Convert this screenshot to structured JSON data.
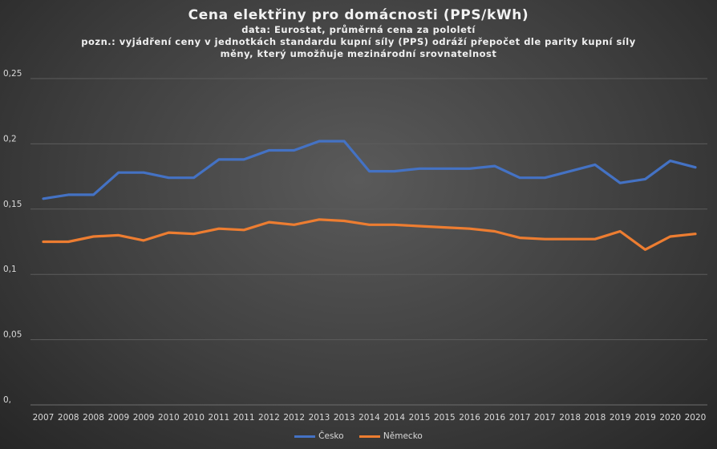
{
  "chart_data": {
    "type": "line",
    "title": "Cena elektřiny pro domácnosti (PPS/kWh)",
    "subtitle_lines": [
      "data: Eurostat, průměrná cena za pololetí",
      "pozn.: vyjádření ceny v jednotkách standardu kupní síly (PPS) odráží přepočet dle parity kupní síly",
      "měny, který umožňuje mezinárodní srovnatelnost"
    ],
    "xlabel": "",
    "ylabel": "",
    "ylim": [
      0,
      0.25
    ],
    "yticks": [
      {
        "value": 0,
        "label": "0,"
      },
      {
        "value": 0.05,
        "label": "0,05"
      },
      {
        "value": 0.1,
        "label": "0,1"
      },
      {
        "value": 0.15,
        "label": "0,15"
      },
      {
        "value": 0.2,
        "label": "0,2"
      },
      {
        "value": 0.25,
        "label": "0,25"
      }
    ],
    "grid": true,
    "legend_position": "bottom",
    "categories": [
      "2007",
      "2008",
      "2008",
      "2009",
      "2009",
      "2010",
      "2010",
      "2011",
      "2011",
      "2012",
      "2012",
      "2013",
      "2013",
      "2014",
      "2014",
      "2015",
      "2015",
      "2016",
      "2016",
      "2017",
      "2017",
      "2018",
      "2018",
      "2019",
      "2019",
      "2020",
      "2020"
    ],
    "series": [
      {
        "name": "Česko",
        "color": "#4472c4",
        "values": [
          0.158,
          0.161,
          0.161,
          0.178,
          0.178,
          0.174,
          0.174,
          0.188,
          0.188,
          0.195,
          0.195,
          0.202,
          0.202,
          0.179,
          0.179,
          0.181,
          0.181,
          0.181,
          0.183,
          0.174,
          0.174,
          0.179,
          0.184,
          0.17,
          0.173,
          0.187,
          0.182
        ]
      },
      {
        "name": "Německo",
        "color": "#ed7d31",
        "values": [
          0.125,
          0.125,
          0.129,
          0.13,
          0.126,
          0.132,
          0.131,
          0.135,
          0.134,
          0.14,
          0.138,
          0.142,
          0.141,
          0.138,
          0.138,
          0.137,
          0.136,
          0.135,
          0.133,
          0.128,
          0.127,
          0.127,
          0.127,
          0.133,
          0.119,
          0.129,
          0.131
        ]
      }
    ]
  }
}
